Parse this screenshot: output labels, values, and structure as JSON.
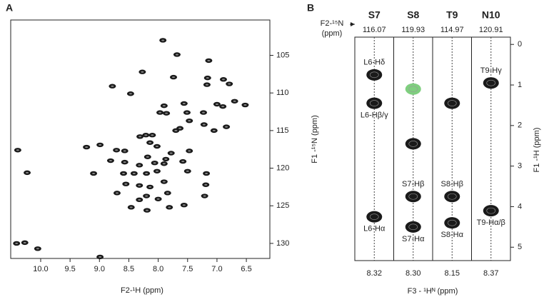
{
  "chart_data": [
    {
      "type": "scatter",
      "panel_label": "A",
      "x_label": "F2-¹H (ppm)",
      "y_label": "F1 -¹⁵N (ppm)",
      "color": "#1a1a1a",
      "xlim": [
        10.51,
        6.1
      ],
      "ylim": [
        132.0,
        100.3
      ],
      "xticks": [
        {
          "value": 10,
          "label": "10.0"
        },
        9.5,
        {
          "value": 9,
          "label": "9.0"
        },
        8.5,
        {
          "value": 8,
          "label": "8.0"
        },
        7.5,
        {
          "value": 7,
          "label": "7.0"
        },
        6.5
      ],
      "yticks": [
        105,
        110,
        115,
        120,
        125,
        130
      ],
      "x": [
        7.92,
        7.68,
        8.27,
        7.14,
        7.16,
        6.89,
        7.17,
        6.79,
        7.74,
        8.78,
        8.47,
        7.9,
        7.56,
        7.97,
        7.86,
        7.51,
        7.23,
        7.0,
        6.9,
        6.52,
        6.7,
        7.47,
        7.22,
        7.05,
        7.7,
        8.21,
        8.1,
        9.22,
        8.99,
        8.71,
        8.57,
        8.31,
        8.14,
        8.02,
        7.78,
        7.47,
        7.87,
        7.58,
        8.81,
        9.1,
        8.57,
        8.32,
        8.02,
        8.2,
        7.9,
        7.5,
        7.19,
        8.55,
        8.32,
        8.14,
        8.7,
        8.32,
        8.0,
        7.81,
        8.2,
        8.46,
        7.84,
        7.21,
        10.39,
        10.23,
        10.41,
        10.27,
        10.05,
        8.99,
        7.18,
        6.84,
        7.63,
        8.18,
        8.06,
        8.41,
        8.59,
        8.19,
        7.9,
        7.56
      ],
      "y": [
        103.0,
        104.9,
        107.2,
        105.7,
        108.0,
        108.2,
        108.9,
        108.8,
        107.9,
        109.1,
        110.1,
        111.7,
        111.4,
        112.6,
        112.7,
        112.6,
        112.6,
        111.5,
        111.8,
        111.6,
        111.1,
        113.7,
        114.2,
        115.0,
        115.0,
        115.6,
        115.6,
        117.2,
        116.9,
        117.6,
        117.7,
        115.8,
        116.6,
        117.1,
        118.0,
        117.7,
        118.8,
        119.1,
        119.0,
        120.7,
        119.2,
        119.6,
        120.4,
        120.7,
        121.8,
        120.4,
        122.2,
        122.1,
        122.3,
        122.5,
        123.3,
        124.2,
        124.1,
        125.2,
        123.7,
        125.2,
        123.3,
        123.7,
        117.6,
        120.6,
        130.0,
        129.9,
        130.7,
        131.8,
        120.7,
        114.5,
        114.7,
        118.5,
        119.3,
        120.7,
        120.7,
        125.6,
        119.4,
        124.9
      ]
    },
    {
      "type": "strip",
      "panel_label": "B",
      "n_axis_label": "F2-¹⁵N",
      "n_axis_unit": "(ppm)",
      "x_label": "F3 - ¹Hᴺ (ppm)",
      "y_label": "F1 -¹H (ppm)",
      "ylim": [
        -0.18,
        5.33
      ],
      "yticks": [
        0,
        1,
        2,
        3,
        4,
        5
      ],
      "strips": [
        {
          "name": "S7",
          "n_shift": "116.07",
          "h_shift": "8.32",
          "peaks": [
            {
              "h": 0.75,
              "color": "#1a1a1a",
              "label": "L6-Hδ",
              "label_side": "above"
            },
            {
              "h": 1.45,
              "color": "#1a1a1a",
              "label": "L6-Hβ/γ",
              "label_side": "below"
            },
            {
              "h": 4.25,
              "color": "#1a1a1a",
              "label": "L6-Hα",
              "label_side": "below"
            }
          ]
        },
        {
          "name": "S8",
          "n_shift": "119.93",
          "h_shift": "8.30",
          "peaks": [
            {
              "h": 1.1,
              "color": "#7fcf7f"
            },
            {
              "h": 2.45,
              "color": "#1a1a1a"
            },
            {
              "h": 3.75,
              "color": "#1a1a1a",
              "label": "S7-Hβ",
              "label_side": "above"
            },
            {
              "h": 4.5,
              "color": "#1a1a1a",
              "label": "S7-Hα",
              "label_side": "below"
            }
          ]
        },
        {
          "name": "T9",
          "n_shift": "114.97",
          "h_shift": "8.15",
          "peaks": [
            {
              "h": 1.45,
              "color": "#1a1a1a"
            },
            {
              "h": 3.75,
              "color": "#1a1a1a",
              "label": "S8-Hβ",
              "label_side": "above"
            },
            {
              "h": 4.4,
              "color": "#1a1a1a",
              "label": "S8-Hα",
              "label_side": "below"
            }
          ]
        },
        {
          "name": "N10",
          "n_shift": "120.91",
          "h_shift": "8.37",
          "peaks": [
            {
              "h": 0.95,
              "color": "#1a1a1a",
              "label": "T9-Hγ",
              "label_side": "above"
            },
            {
              "h": 4.1,
              "color": "#1a1a1a",
              "label": "T9-Hα/β",
              "label_side": "below"
            }
          ]
        }
      ]
    }
  ]
}
